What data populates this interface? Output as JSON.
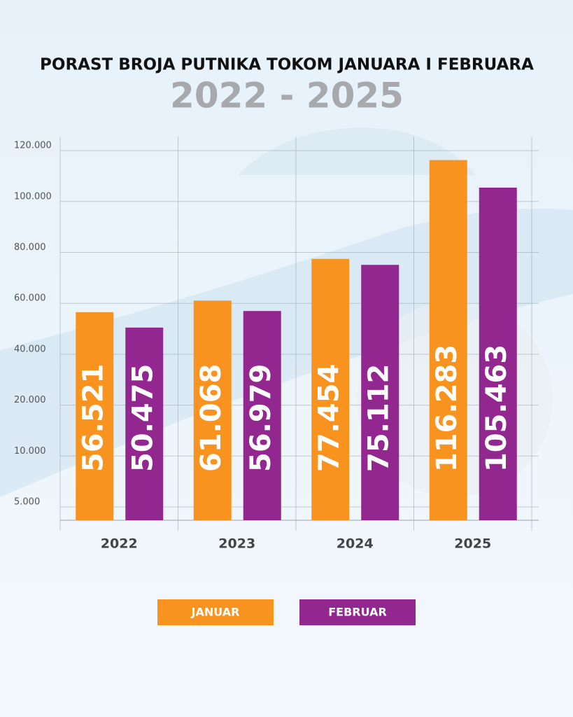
{
  "chart_data": {
    "type": "bar",
    "title": "PORAST BROJA PUTNIKA TOKOM JANUARA I FEBRUARA",
    "subtitle": "2022 - 2025",
    "categories": [
      "2022",
      "2023",
      "2024",
      "2025"
    ],
    "series": [
      {
        "name": "JANUAR",
        "color": "#f7931e",
        "values": [
          56521,
          61068,
          77454,
          116283
        ],
        "value_labels": [
          "56.521",
          "61.068",
          "77.454",
          "116.283"
        ]
      },
      {
        "name": "FEBRUAR",
        "color": "#92278f",
        "values": [
          50475,
          56979,
          75112,
          105463
        ],
        "value_labels": [
          "50.475",
          "56.979",
          "75.112",
          "105.463"
        ]
      }
    ],
    "ylim": [
      0,
      120000
    ],
    "yticks": [
      {
        "value": 5000,
        "label": "5.000"
      },
      {
        "value": 10000,
        "label": "10.000"
      },
      {
        "value": 20000,
        "label": "20.000"
      },
      {
        "value": 40000,
        "label": "40.000"
      },
      {
        "value": 60000,
        "label": "60.000"
      },
      {
        "value": 80000,
        "label": "80.000"
      },
      {
        "value": 100000,
        "label": "100.000"
      },
      {
        "value": 120000,
        "label": "120.000"
      }
    ],
    "grid": true,
    "legend": "bottom"
  }
}
